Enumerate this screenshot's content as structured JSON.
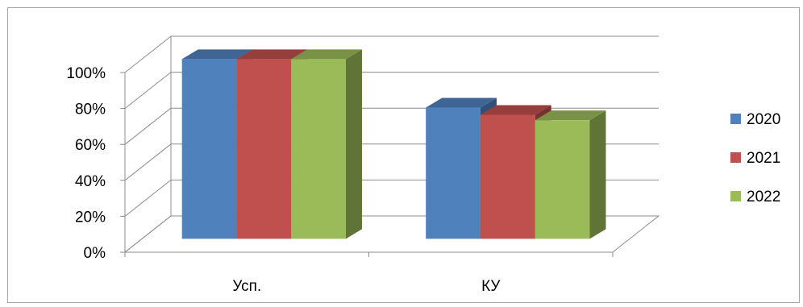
{
  "chart_data": {
    "type": "bar",
    "subtype": "3d-clustered-column",
    "categories": [
      "Усп.",
      "КУ"
    ],
    "series": [
      {
        "name": "2020",
        "values": [
          100,
          73
        ],
        "color": "#4F81BD"
      },
      {
        "name": "2021",
        "values": [
          100,
          69
        ],
        "color": "#C0504D"
      },
      {
        "name": "2022",
        "values": [
          100,
          66
        ],
        "color": "#9BBB59"
      }
    ],
    "ylim": [
      0,
      100
    ],
    "y_ticks": [
      "0%",
      "20%",
      "40%",
      "60%",
      "80%",
      "100%"
    ],
    "y_tick_values": [
      0,
      20,
      40,
      60,
      80,
      100
    ],
    "grid": true,
    "legend_position": "right",
    "title": "",
    "xlabel": "",
    "ylabel": ""
  }
}
